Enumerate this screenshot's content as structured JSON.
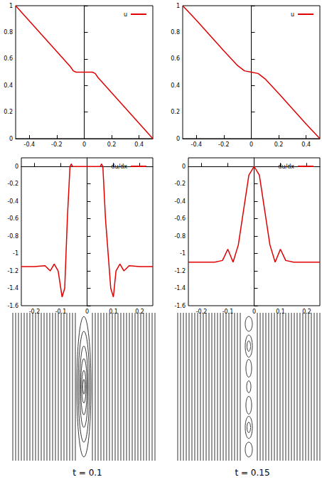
{
  "chart_data": [
    {
      "type": "line",
      "xlim": [
        -0.5,
        0.5
      ],
      "xticks": [
        -0.4,
        -0.2,
        0,
        0.2,
        0.4
      ],
      "ylim": [
        0,
        1
      ],
      "yticks": [
        0,
        0.2,
        0.4,
        0.6,
        0.8,
        1
      ],
      "grid": false,
      "legend": "upper right",
      "x": [
        -0.5,
        -0.4,
        -0.2,
        -0.1,
        -0.08,
        -0.06,
        0.06,
        0.08,
        0.1,
        0.2,
        0.4,
        0.5
      ],
      "series": [
        {
          "name": "u",
          "color": "#e00000",
          "values": [
            1,
            0.885,
            0.655,
            0.54,
            0.51,
            0.5,
            0.5,
            0.49,
            0.46,
            0.345,
            0.115,
            0
          ]
        }
      ]
    },
    {
      "type": "line",
      "xlim": [
        -0.5,
        0.5
      ],
      "xticks": [
        -0.4,
        -0.2,
        0,
        0.2,
        0.4
      ],
      "ylim": [
        0,
        1
      ],
      "yticks": [
        0,
        0.2,
        0.4,
        0.6,
        0.8,
        1
      ],
      "grid": false,
      "legend": "upper right",
      "x": [
        -0.5,
        -0.4,
        -0.2,
        -0.1,
        -0.05,
        0,
        0.05,
        0.1,
        0.2,
        0.4,
        0.5
      ],
      "series": [
        {
          "name": "u",
          "color": "#e00000",
          "values": [
            1,
            0.89,
            0.66,
            0.55,
            0.51,
            0.5,
            0.49,
            0.45,
            0.34,
            0.11,
            0
          ]
        }
      ]
    },
    {
      "type": "line",
      "xlim": [
        -0.25,
        0.25
      ],
      "xticks": [
        -0.2,
        -0.1,
        0,
        0.1,
        0.2
      ],
      "ylim": [
        -1.6,
        0.1
      ],
      "yticks": [
        -1.6,
        -1.4,
        -1.2,
        -1,
        -0.8,
        -0.6,
        -0.4,
        -0.2,
        0
      ],
      "grid": false,
      "legend": "upper right",
      "x": [
        -0.25,
        -0.2,
        -0.16,
        -0.14,
        -0.125,
        -0.11,
        -0.095,
        -0.085,
        -0.075,
        -0.065,
        -0.06,
        -0.055,
        0.05,
        0.055,
        0.06,
        0.07,
        0.09,
        0.1,
        0.11,
        0.125,
        0.14,
        0.16,
        0.2,
        0.25
      ],
      "series": [
        {
          "name": "du/dx",
          "color": "#e00000",
          "values": [
            -1.15,
            -1.15,
            -1.14,
            -1.2,
            -1.12,
            -1.2,
            -1.5,
            -1.4,
            -0.6,
            0,
            0.03,
            0,
            0,
            0.03,
            0,
            -0.6,
            -1.4,
            -1.5,
            -1.2,
            -1.12,
            -1.2,
            -1.14,
            -1.15,
            -1.15
          ]
        }
      ]
    },
    {
      "type": "line",
      "xlim": [
        -0.25,
        0.25
      ],
      "xticks": [
        -0.2,
        -0.1,
        0,
        0.1,
        0.2
      ],
      "ylim": [
        -1.6,
        0.1
      ],
      "yticks": [
        -1.6,
        -1.4,
        -1.2,
        -1,
        -0.8,
        -0.6,
        -0.4,
        -0.2,
        0
      ],
      "grid": false,
      "legend": "upper right",
      "x": [
        -0.25,
        -0.2,
        -0.15,
        -0.12,
        -0.1,
        -0.08,
        -0.06,
        -0.04,
        -0.02,
        0,
        0.02,
        0.04,
        0.06,
        0.08,
        0.1,
        0.12,
        0.15,
        0.2,
        0.25
      ],
      "series": [
        {
          "name": "du/dx",
          "color": "#e00000",
          "values": [
            -1.1,
            -1.1,
            -1.1,
            -1.08,
            -0.95,
            -1.1,
            -0.9,
            -0.5,
            -0.1,
            0,
            -0.1,
            -0.5,
            -0.9,
            -1.1,
            -0.95,
            -1.08,
            -1.1,
            -1.1,
            -1.1
          ]
        }
      ]
    },
    {
      "type": "contour",
      "xlabel": "t = 0.1",
      "tick_labels": false,
      "color": "#000000",
      "xlim": [
        -1,
        1
      ],
      "ylim": [
        -1,
        1
      ],
      "lines_x": [
        -1,
        -0.96,
        -0.92,
        -0.88,
        -0.84,
        -0.8,
        -0.76,
        -0.72,
        -0.68,
        -0.64,
        -0.6,
        -0.56,
        -0.52,
        -0.48,
        -0.44,
        -0.4,
        -0.36,
        -0.32,
        -0.28,
        -0.24,
        -0.2,
        -0.16,
        -0.12,
        0.12,
        0.16,
        0.2,
        0.24,
        0.28,
        0.32,
        0.36,
        0.4,
        0.44,
        0.48,
        0.52,
        0.56,
        0.6,
        0.64,
        0.68,
        0.72,
        0.76,
        0.8,
        0.84,
        0.88,
        0.92,
        0.96,
        1
      ],
      "ellipses": [
        {
          "cx": 0,
          "cy": 0,
          "rx": 0.1,
          "ry": 0.95
        },
        {
          "cx": 0,
          "cy": 0,
          "rx": 0.08,
          "ry": 0.75
        },
        {
          "cx": 0,
          "cy": 0,
          "rx": 0.06,
          "ry": 0.55
        },
        {
          "cx": 0,
          "cy": 0,
          "rx": 0.045,
          "ry": 0.38
        },
        {
          "cx": 0,
          "cy": 0,
          "rx": 0.03,
          "ry": 0.22
        },
        {
          "cx": 0,
          "cy": 0,
          "rx": 0.015,
          "ry": 0.1
        }
      ]
    },
    {
      "type": "contour",
      "xlabel": "t = 0.15",
      "tick_labels": false,
      "color": "#000000",
      "xlim": [
        -1,
        1
      ],
      "ylim": [
        -1,
        1
      ],
      "lines_x": [
        -1,
        -0.96,
        -0.92,
        -0.88,
        -0.84,
        -0.8,
        -0.76,
        -0.72,
        -0.68,
        -0.64,
        -0.6,
        -0.56,
        -0.52,
        -0.48,
        -0.44,
        -0.4,
        -0.36,
        -0.32,
        -0.28,
        -0.24,
        -0.2,
        -0.16,
        -0.12,
        0.12,
        0.16,
        0.2,
        0.24,
        0.28,
        0.32,
        0.36,
        0.4,
        0.44,
        0.48,
        0.52,
        0.56,
        0.6,
        0.64,
        0.68,
        0.72,
        0.76,
        0.8,
        0.84,
        0.88,
        0.92,
        0.96,
        1
      ],
      "ellipses": [
        {
          "cx": 0,
          "cy": 0.85,
          "rx": 0.05,
          "ry": 0.1
        },
        {
          "cx": 0,
          "cy": -0.85,
          "rx": 0.05,
          "ry": 0.1
        },
        {
          "cx": 0,
          "cy": 0.55,
          "rx": 0.05,
          "ry": 0.15
        },
        {
          "cx": 0,
          "cy": -0.55,
          "rx": 0.05,
          "ry": 0.15
        },
        {
          "cx": 0,
          "cy": 0.55,
          "rx": 0.025,
          "ry": 0.07
        },
        {
          "cx": 0,
          "cy": -0.55,
          "rx": 0.025,
          "ry": 0.07
        },
        {
          "cx": 0,
          "cy": 0.25,
          "rx": 0.04,
          "ry": 0.12
        },
        {
          "cx": 0,
          "cy": -0.25,
          "rx": 0.04,
          "ry": 0.12
        },
        {
          "cx": 0,
          "cy": 0,
          "rx": 0.03,
          "ry": 0.08
        }
      ]
    }
  ]
}
